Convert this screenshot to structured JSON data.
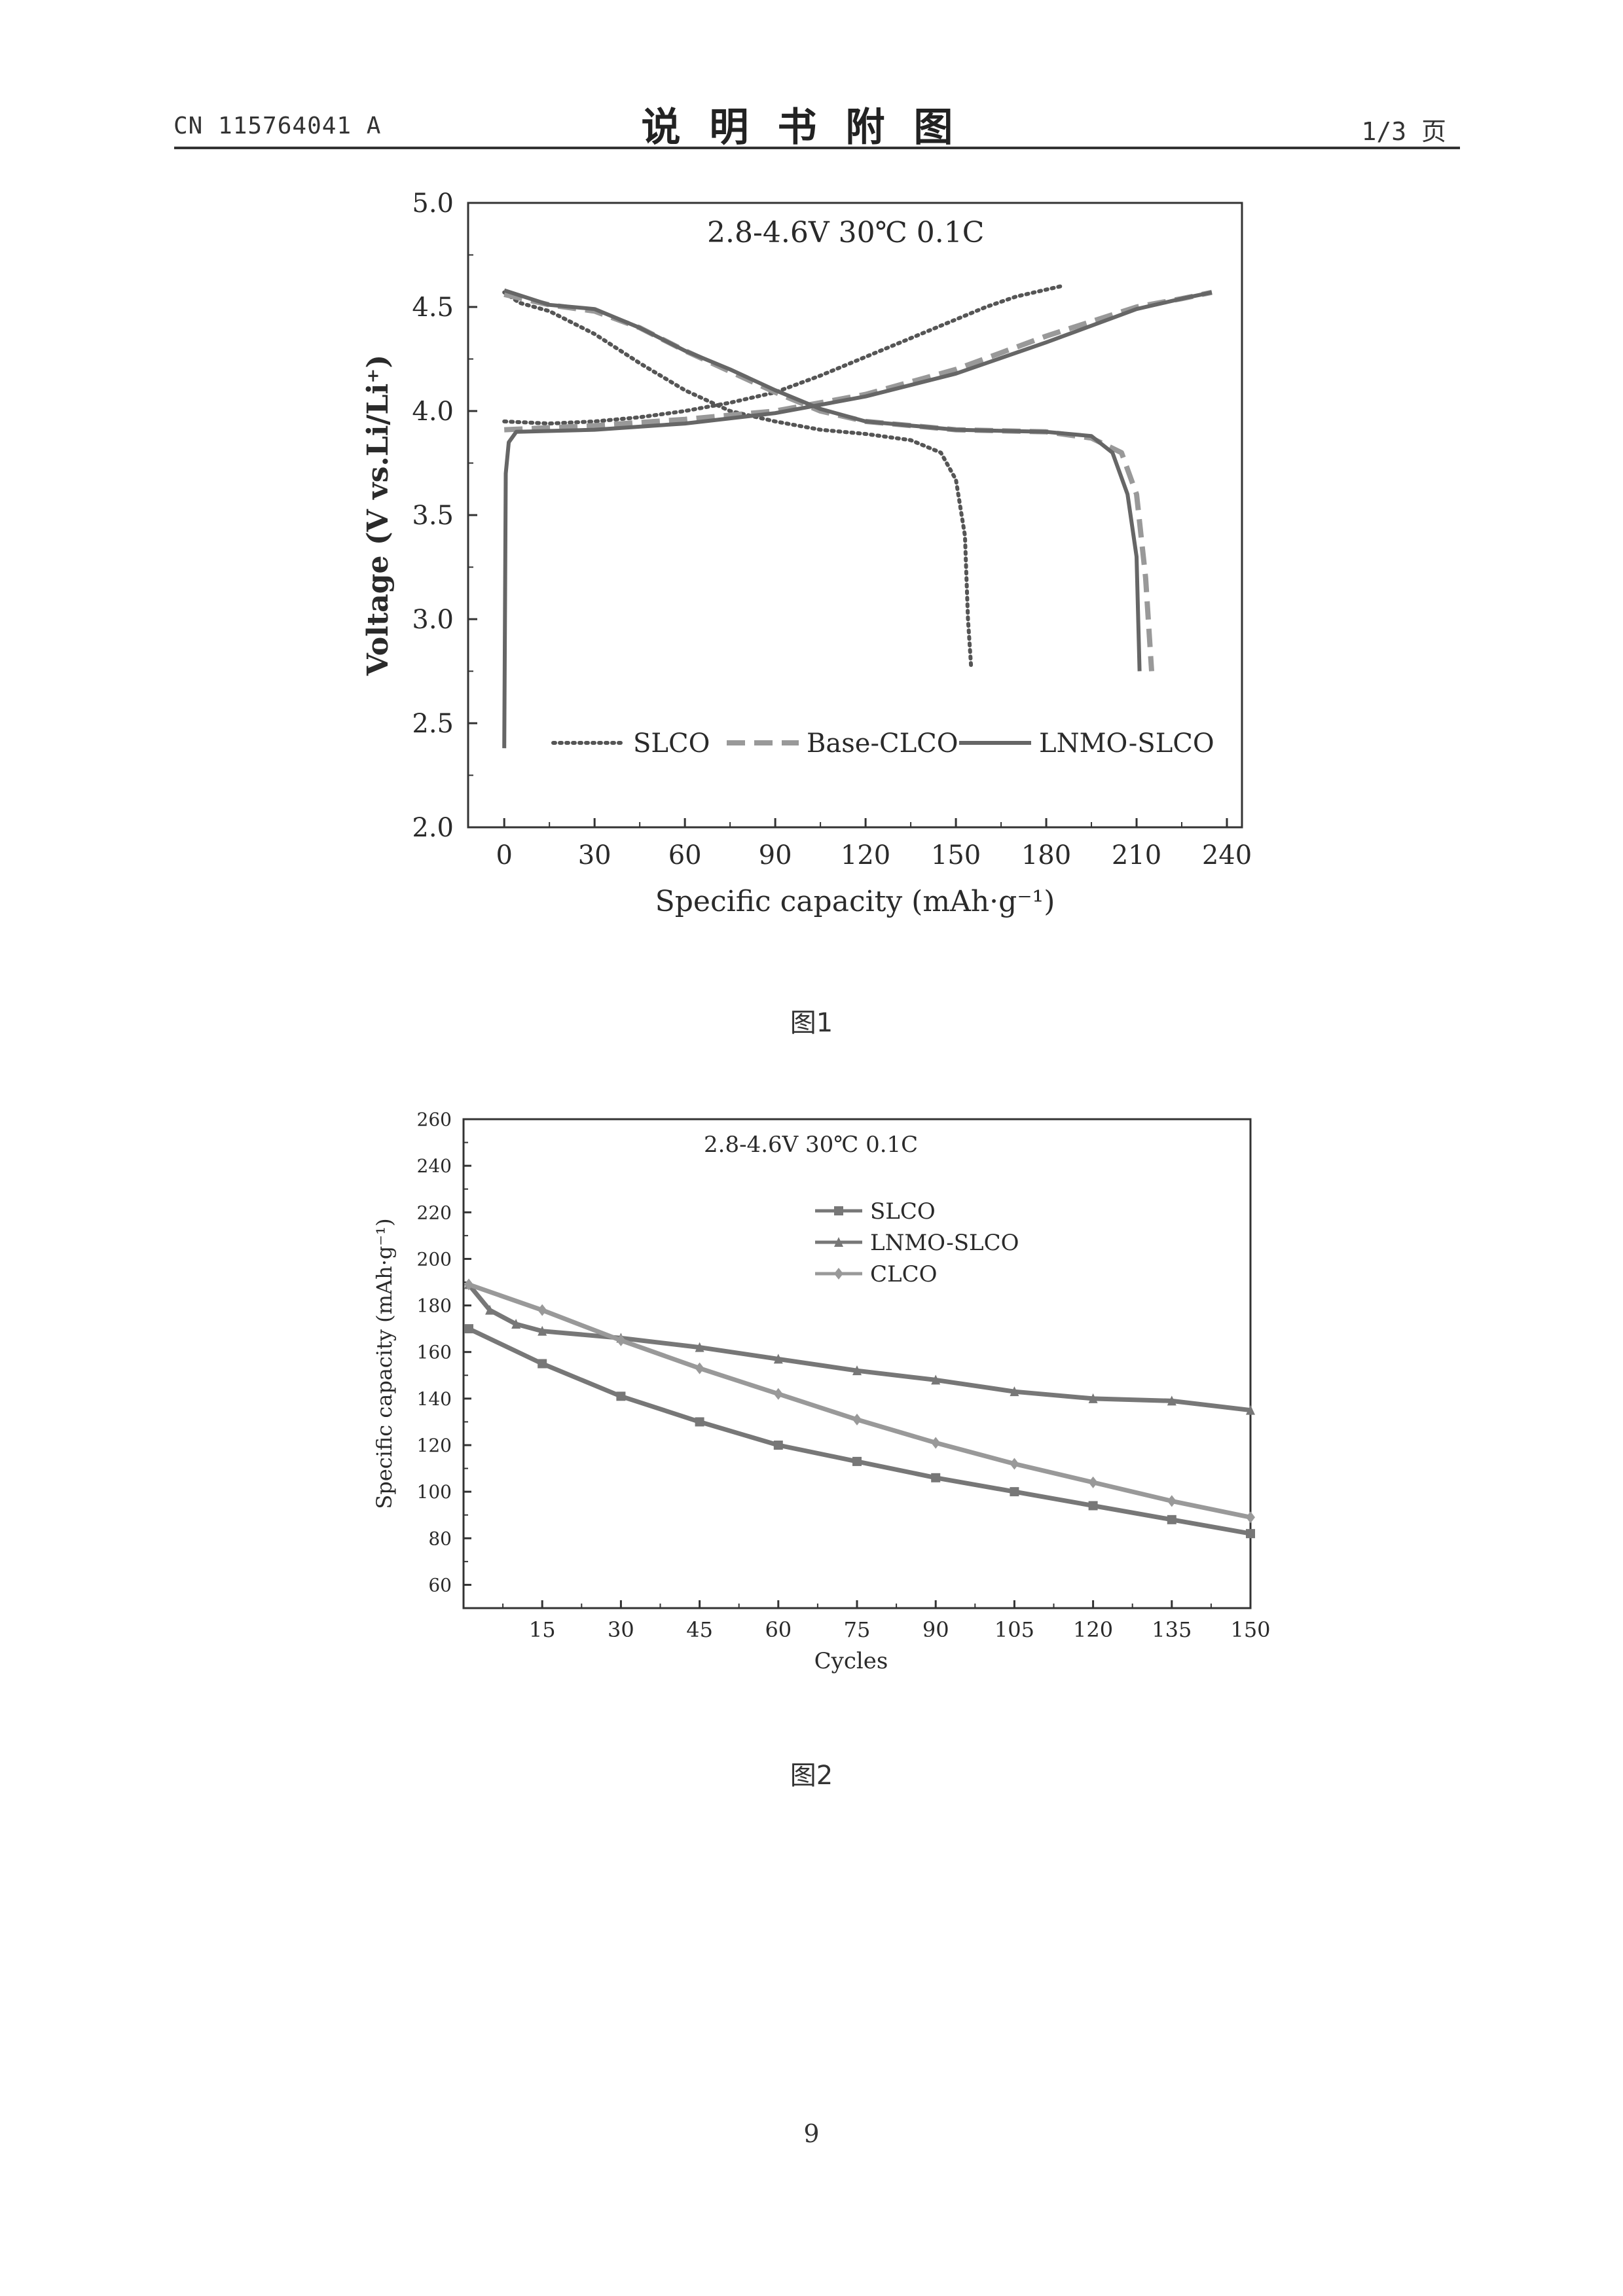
{
  "header": {
    "doc_id": "CN 115764041 A",
    "title": "说明书附图",
    "page_of": "1/3 页"
  },
  "figures": [
    {
      "caption": "图1"
    },
    {
      "caption": "图2"
    }
  ],
  "page_number": "9",
  "colors": {
    "ink": "#2a2a2a",
    "series_dark": "#555555",
    "series_mid": "#777777",
    "series_light": "#999999"
  },
  "chart_data": [
    {
      "type": "line",
      "title": "",
      "annotation": "2.8-4.6V   30℃   0.1C",
      "xlabel": "Specific capacity (mAh·g⁻¹)",
      "ylabel": "Voltage (V vs.Li/Li⁺)",
      "xlim": [
        -12,
        245
      ],
      "ylim": [
        2.0,
        5.0
      ],
      "xticks": [
        "0",
        "30",
        "60",
        "90",
        "120",
        "150",
        "180",
        "210",
        "240"
      ],
      "yticks": [
        "2.0",
        "2.5",
        "3.0",
        "3.5",
        "4.0",
        "4.5",
        "5.0"
      ],
      "legend_position": "bottom",
      "series": [
        {
          "name": "SLCO",
          "style": "dotted",
          "color": "#555555",
          "charge": [
            [
              0,
              3.95
            ],
            [
              15,
              3.94
            ],
            [
              30,
              3.95
            ],
            [
              45,
              3.97
            ],
            [
              60,
              4.0
            ],
            [
              75,
              4.04
            ],
            [
              90,
              4.09
            ],
            [
              105,
              4.17
            ],
            [
              120,
              4.26
            ],
            [
              135,
              4.35
            ],
            [
              150,
              4.44
            ],
            [
              160,
              4.5
            ],
            [
              170,
              4.55
            ],
            [
              185,
              4.6
            ]
          ],
          "discharge": [
            [
              0,
              4.57
            ],
            [
              5,
              4.52
            ],
            [
              15,
              4.48
            ],
            [
              30,
              4.37
            ],
            [
              45,
              4.23
            ],
            [
              60,
              4.1
            ],
            [
              75,
              4.0
            ],
            [
              90,
              3.95
            ],
            [
              105,
              3.91
            ],
            [
              120,
              3.89
            ],
            [
              135,
              3.86
            ],
            [
              145,
              3.8
            ],
            [
              150,
              3.67
            ],
            [
              153,
              3.4
            ],
            [
              154,
              3.0
            ],
            [
              155,
              2.78
            ]
          ]
        },
        {
          "name": "Base-CLCO",
          "style": "dashed",
          "color": "#999999",
          "charge": [
            [
              0,
              3.91
            ],
            [
              30,
              3.93
            ],
            [
              60,
              3.96
            ],
            [
              90,
              4.0
            ],
            [
              120,
              4.08
            ],
            [
              150,
              4.2
            ],
            [
              180,
              4.36
            ],
            [
              210,
              4.5
            ],
            [
              225,
              4.54
            ],
            [
              235,
              4.57
            ]
          ],
          "discharge": [
            [
              0,
              4.56
            ],
            [
              15,
              4.51
            ],
            [
              30,
              4.48
            ],
            [
              45,
              4.4
            ],
            [
              60,
              4.29
            ],
            [
              75,
              4.19
            ],
            [
              90,
              4.09
            ],
            [
              105,
              4.0
            ],
            [
              120,
              3.95
            ],
            [
              150,
              3.91
            ],
            [
              180,
              3.9
            ],
            [
              195,
              3.87
            ],
            [
              205,
              3.8
            ],
            [
              210,
              3.6
            ],
            [
              213,
              3.2
            ],
            [
              215,
              2.75
            ]
          ]
        },
        {
          "name": "LNMO-SLCO",
          "style": "solid",
          "color": "#666666",
          "charge": [
            [
              0,
              2.38
            ],
            [
              0.5,
              3.7
            ],
            [
              1.5,
              3.85
            ],
            [
              4,
              3.9
            ],
            [
              30,
              3.91
            ],
            [
              60,
              3.94
            ],
            [
              90,
              3.99
            ],
            [
              120,
              4.07
            ],
            [
              150,
              4.18
            ],
            [
              180,
              4.33
            ],
            [
              210,
              4.49
            ],
            [
              225,
              4.54
            ],
            [
              235,
              4.57
            ]
          ],
          "discharge": [
            [
              0,
              4.58
            ],
            [
              15,
              4.51
            ],
            [
              30,
              4.49
            ],
            [
              45,
              4.4
            ],
            [
              60,
              4.29
            ],
            [
              75,
              4.2
            ],
            [
              90,
              4.1
            ],
            [
              105,
              4.01
            ],
            [
              120,
              3.95
            ],
            [
              150,
              3.91
            ],
            [
              180,
              3.9
            ],
            [
              195,
              3.88
            ],
            [
              202,
              3.8
            ],
            [
              207,
              3.6
            ],
            [
              210,
              3.3
            ],
            [
              211,
              2.75
            ]
          ]
        }
      ]
    },
    {
      "type": "line",
      "title": "",
      "annotation": "2.8-4.6V  30℃  0.1C",
      "xlabel": "Cycles",
      "ylabel": "Specific capacity (mAh·g⁻¹)",
      "xlim": [
        0,
        150
      ],
      "ylim": [
        50,
        260
      ],
      "xticks": [
        "15",
        "30",
        "45",
        "60",
        "75",
        "90",
        "105",
        "120",
        "135",
        "150"
      ],
      "yticks": [
        "60",
        "80",
        "100",
        "120",
        "140",
        "160",
        "180",
        "200",
        "220",
        "240",
        "260"
      ],
      "legend_position": "top-right",
      "series": [
        {
          "name": "SLCO",
          "marker": "square",
          "color": "#777777",
          "x": [
            1,
            15,
            30,
            45,
            60,
            75,
            90,
            105,
            120,
            135,
            150
          ],
          "y": [
            170,
            155,
            141,
            130,
            120,
            113,
            106,
            100,
            94,
            88,
            82
          ]
        },
        {
          "name": "LNMO-SLCO",
          "marker": "triangle",
          "color": "#777777",
          "x": [
            1,
            5,
            10,
            15,
            30,
            45,
            60,
            75,
            90,
            105,
            120,
            135,
            150
          ],
          "y": [
            189,
            178,
            172,
            169,
            166,
            162,
            157,
            152,
            148,
            143,
            140,
            139,
            135
          ]
        },
        {
          "name": "CLCO",
          "marker": "diamond",
          "color": "#999999",
          "x": [
            1,
            15,
            30,
            45,
            60,
            75,
            90,
            105,
            120,
            135,
            150
          ],
          "y": [
            189,
            178,
            165,
            153,
            142,
            131,
            121,
            112,
            104,
            96,
            89
          ]
        }
      ]
    }
  ]
}
